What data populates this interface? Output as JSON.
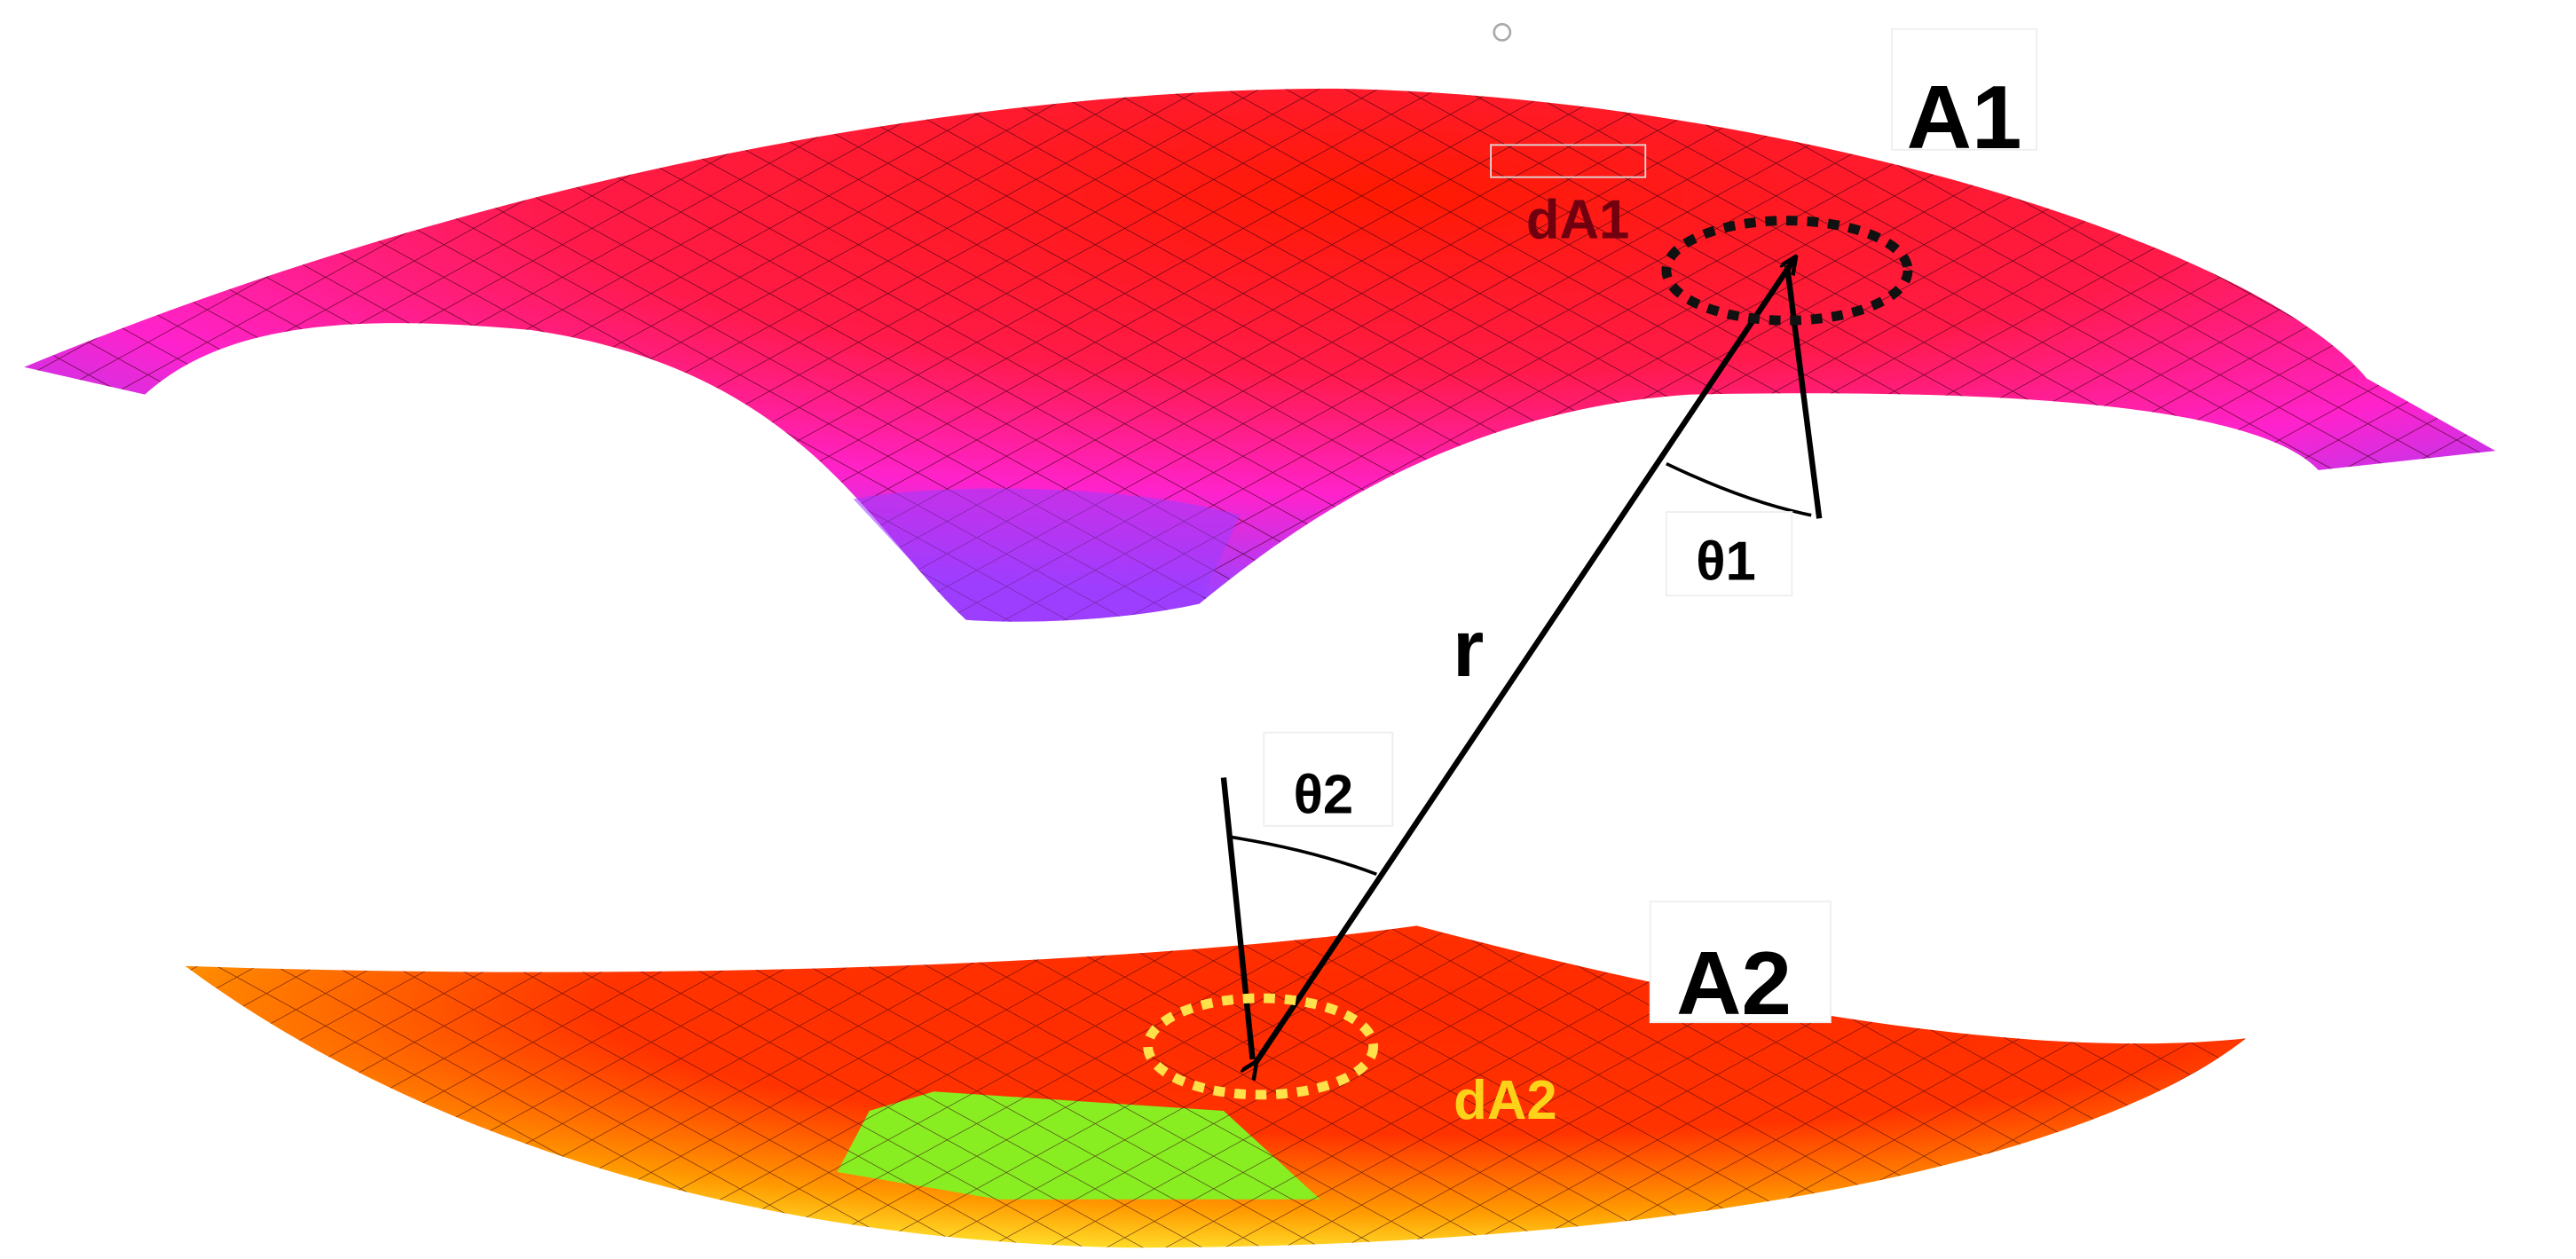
{
  "labels": {
    "a1": "A1",
    "da1": "dA1",
    "theta1": "θ1",
    "r": "r",
    "theta2": "θ2",
    "a2": "A2",
    "da2": "dA2"
  }
}
